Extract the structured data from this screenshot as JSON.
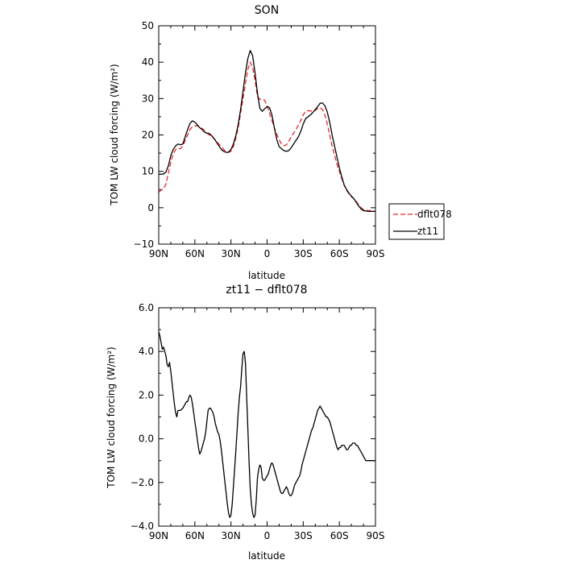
{
  "chart_data": [
    {
      "type": "line",
      "title": "SON",
      "xlabel": "latitude",
      "ylabel": "TOM LW cloud forcing (W/m²)",
      "xlim": [
        90,
        -90
      ],
      "ylim": [
        -10,
        50
      ],
      "x_ticks": [
        90,
        60,
        30,
        0,
        -30,
        -60,
        -90
      ],
      "x_tick_labels": [
        "90N",
        "60N",
        "30N",
        "0",
        "30S",
        "60S",
        "90S"
      ],
      "y_ticks": [
        -10,
        0,
        10,
        20,
        30,
        40,
        50
      ],
      "y_tick_labels": [
        "−10",
        "0",
        "10",
        "20",
        "30",
        "40",
        "50"
      ],
      "legend": "right",
      "series": [
        {
          "name": "dflt078",
          "style": "dashed",
          "color": "#e8262b",
          "x": [
            90,
            88,
            86,
            84,
            82,
            80,
            78,
            76,
            74,
            72,
            70,
            68,
            66,
            64,
            62,
            60,
            58,
            56,
            54,
            52,
            50,
            48,
            46,
            44,
            42,
            40,
            38,
            36,
            34,
            32,
            30,
            28,
            26,
            24,
            22,
            20,
            18,
            16,
            14,
            12,
            10,
            8,
            6,
            4,
            2,
            0,
            -2,
            -4,
            -6,
            -8,
            -10,
            -12,
            -14,
            -16,
            -18,
            -20,
            -22,
            -24,
            -26,
            -28,
            -30,
            -32,
            -34,
            -36,
            -38,
            -40,
            -42,
            -44,
            -46,
            -48,
            -50,
            -52,
            -54,
            -56,
            -58,
            -60,
            -62,
            -64,
            -66,
            -68,
            -70,
            -72,
            -74,
            -76,
            -78,
            -80,
            -82,
            -84,
            -86,
            -88,
            -90
          ],
          "y": [
            4.3,
            4.8,
            5.2,
            6.5,
            9.5,
            12.5,
            14.8,
            16,
            16.3,
            16.2,
            17,
            18.5,
            20,
            21.5,
            22.3,
            22.5,
            22.5,
            22.2,
            21.8,
            21.2,
            20.5,
            20,
            19.6,
            19,
            18.2,
            17.5,
            16.8,
            16,
            15.4,
            15.2,
            15.5,
            16.8,
            19,
            22,
            26,
            30,
            34,
            38,
            40,
            38.5,
            35,
            30.5,
            29.8,
            29.8,
            29.5,
            28,
            26,
            24,
            22,
            20.2,
            18.7,
            17.5,
            17,
            17.3,
            18.2,
            19.5,
            20.5,
            21.5,
            22.7,
            24,
            25.5,
            26.5,
            26.7,
            26.6,
            26.5,
            26.7,
            27.3,
            27.5,
            27,
            25.5,
            23,
            20,
            17,
            14.5,
            12,
            10,
            8,
            6.2,
            4.8,
            3.8,
            3,
            2.5,
            1.8,
            0.8,
            0,
            -0.5,
            -0.7,
            -0.8,
            -0.8,
            -0.9,
            -1
          ]
        },
        {
          "name": "zt11",
          "style": "solid",
          "color": "#000000",
          "x": [
            90,
            88,
            86,
            84,
            82,
            80,
            78,
            76,
            74,
            72,
            70,
            68,
            66,
            64,
            62,
            60,
            58,
            56,
            54,
            52,
            50,
            48,
            46,
            44,
            42,
            40,
            38,
            36,
            34,
            32,
            30,
            28,
            26,
            24,
            22,
            20,
            18,
            16,
            14,
            12,
            10,
            8,
            6,
            4,
            2,
            0,
            -2,
            -4,
            -6,
            -8,
            -10,
            -12,
            -14,
            -16,
            -18,
            -20,
            -22,
            -24,
            -26,
            -28,
            -30,
            -32,
            -34,
            -36,
            -38,
            -40,
            -42,
            -44,
            -46,
            -48,
            -50,
            -52,
            -54,
            -56,
            -58,
            -60,
            -62,
            -64,
            -66,
            -68,
            -70,
            -72,
            -74,
            -76,
            -78,
            -80,
            -82,
            -84,
            -86,
            -88,
            -90
          ],
          "y": [
            9.2,
            9.2,
            9.3,
            9.8,
            11.5,
            14.3,
            16,
            17,
            17.5,
            17.3,
            17.5,
            19.5,
            21.5,
            23.2,
            23.9,
            23.5,
            22.8,
            22,
            21.5,
            20.8,
            20.5,
            20.4,
            19.8,
            19,
            18,
            17,
            16,
            15.5,
            15.2,
            15.3,
            16,
            17.5,
            19.8,
            22.8,
            27,
            32,
            37,
            41,
            43.2,
            41.8,
            37,
            31.5,
            27.3,
            26.5,
            27.2,
            27.8,
            27.5,
            25.5,
            22,
            18.8,
            16.8,
            16.2,
            15.7,
            15.5,
            15.7,
            16.5,
            17.5,
            18.5,
            19.5,
            21,
            23,
            24.5,
            25,
            25.5,
            26.2,
            27,
            27.8,
            28.7,
            28.8,
            28,
            26.3,
            23.5,
            20,
            17,
            14,
            11,
            8.5,
            6.3,
            5,
            4,
            3.2,
            2.5,
            1.5,
            0.5,
            -0.3,
            -0.8,
            -0.9,
            -1,
            -1,
            -1,
            -1
          ]
        }
      ]
    },
    {
      "type": "line",
      "title": "zt11 − dflt078",
      "xlabel": "latitude",
      "ylabel": "TOM LW cloud forcing (W/m²)",
      "xlim": [
        90,
        -90
      ],
      "ylim": [
        -4,
        6
      ],
      "x_ticks": [
        90,
        60,
        30,
        0,
        -30,
        -60,
        -90
      ],
      "x_tick_labels": [
        "90N",
        "60N",
        "30N",
        "0",
        "30S",
        "60S",
        "90S"
      ],
      "y_ticks": [
        -4,
        -2,
        0,
        2,
        4,
        6
      ],
      "y_tick_labels": [
        "−4.0",
        "−2.0",
        "0.0",
        "2.0",
        "4.0",
        "6.0"
      ],
      "series": [
        {
          "style": "solid",
          "color": "#000000",
          "x": [
            90,
            89,
            88,
            87,
            86,
            85,
            84,
            83,
            82,
            81,
            80,
            79,
            78,
            77,
            76,
            75,
            74,
            72,
            70,
            69,
            68,
            67,
            66,
            65,
            64,
            63,
            62,
            61,
            60,
            59,
            58,
            57,
            56,
            55,
            54,
            53,
            52,
            51,
            50,
            49,
            48,
            47,
            46,
            45,
            44,
            43,
            42,
            41,
            40,
            39,
            38,
            37,
            36,
            35,
            34,
            33,
            32,
            31,
            30,
            29,
            28,
            27,
            26,
            25,
            24,
            23,
            22,
            21,
            20,
            19,
            18,
            17,
            16,
            15,
            14,
            13,
            12,
            11,
            10,
            9,
            8,
            7,
            6,
            5,
            4,
            3,
            2,
            1,
            0,
            -1,
            -2,
            -3,
            -4,
            -5,
            -6,
            -7,
            -8,
            -9,
            -10,
            -11,
            -12,
            -13,
            -14,
            -15,
            -16,
            -17,
            -18,
            -19,
            -20,
            -21,
            -22,
            -23,
            -24,
            -25,
            -26,
            -27,
            -28,
            -29,
            -30,
            -31,
            -32,
            -33,
            -34,
            -35,
            -36,
            -37,
            -38,
            -39,
            -40,
            -41,
            -42,
            -43,
            -44,
            -45,
            -46,
            -47,
            -48,
            -49,
            -50,
            -51,
            -52,
            -53,
            -54,
            -55,
            -56,
            -57,
            -58,
            -59,
            -60,
            -61,
            -62,
            -63,
            -64,
            -65,
            -66,
            -67,
            -68,
            -69,
            -70,
            -71,
            -72,
            -73,
            -74,
            -75,
            -76,
            -77,
            -78,
            -79,
            -80,
            -81,
            -82,
            -83,
            -84,
            -85,
            -86,
            -87,
            -88,
            -89,
            -90
          ],
          "y": [
            4.9,
            4.7,
            4.4,
            4.1,
            4.2,
            4.0,
            3.8,
            3.4,
            3.3,
            3.5,
            3.1,
            2.6,
            2.1,
            1.6,
            1.2,
            1.0,
            1.3,
            1.3,
            1.4,
            1.5,
            1.6,
            1.7,
            1.7,
            1.9,
            2.0,
            1.9,
            1.6,
            1.2,
            0.8,
            0.4,
            0.0,
            -0.4,
            -0.7,
            -0.6,
            -0.4,
            -0.2,
            0.0,
            0.3,
            0.8,
            1.3,
            1.4,
            1.4,
            1.3,
            1.2,
            1.0,
            0.7,
            0.5,
            0.3,
            0.2,
            -0.1,
            -0.5,
            -1.0,
            -1.5,
            -2.0,
            -2.5,
            -3.0,
            -3.4,
            -3.6,
            -3.5,
            -3.0,
            -2.2,
            -1.4,
            -0.6,
            0.3,
            1.2,
            1.9,
            2.4,
            3.2,
            3.9,
            4.0,
            3.5,
            2.0,
            0.5,
            -1.0,
            -2.3,
            -3.0,
            -3.4,
            -3.6,
            -3.5,
            -2.8,
            -1.8,
            -1.4,
            -1.2,
            -1.3,
            -1.8,
            -1.9,
            -1.9,
            -1.8,
            -1.7,
            -1.6,
            -1.4,
            -1.2,
            -1.1,
            -1.2,
            -1.4,
            -1.6,
            -1.8,
            -2.0,
            -2.2,
            -2.4,
            -2.5,
            -2.5,
            -2.4,
            -2.3,
            -2.2,
            -2.3,
            -2.5,
            -2.6,
            -2.6,
            -2.5,
            -2.3,
            -2.1,
            -2.0,
            -1.9,
            -1.8,
            -1.7,
            -1.5,
            -1.2,
            -1.0,
            -0.8,
            -0.6,
            -0.4,
            -0.2,
            0.0,
            0.2,
            0.4,
            0.5,
            0.7,
            0.9,
            1.1,
            1.3,
            1.4,
            1.5,
            1.4,
            1.3,
            1.2,
            1.1,
            1.0,
            1.0,
            0.9,
            0.8,
            0.6,
            0.4,
            0.2,
            0.0,
            -0.2,
            -0.4,
            -0.5,
            -0.4,
            -0.4,
            -0.3,
            -0.3,
            -0.3,
            -0.4,
            -0.5,
            -0.5,
            -0.4,
            -0.3,
            -0.3,
            -0.2,
            -0.2,
            -0.2,
            -0.3,
            -0.3,
            -0.4,
            -0.5,
            -0.6,
            -0.7,
            -0.8,
            -0.9,
            -1.0,
            -1.0,
            -1.0,
            -1.0,
            -1.0,
            -1.0,
            -1.0,
            -1.0,
            -1.0
          ]
        }
      ]
    }
  ]
}
